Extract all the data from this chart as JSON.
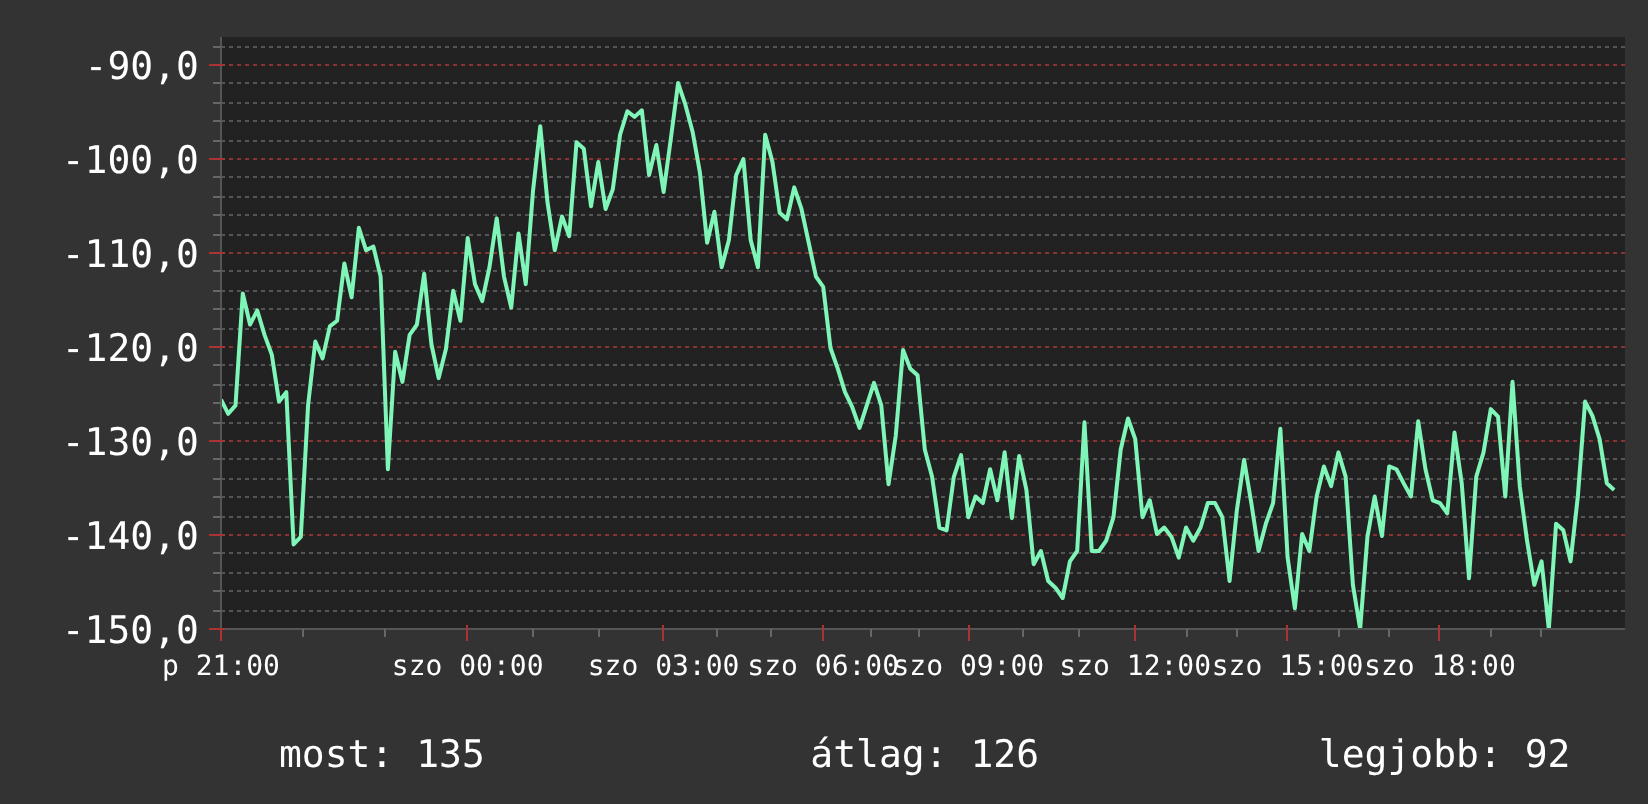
{
  "chart_data": {
    "type": "line",
    "color": "#7ff5b8",
    "grid": true,
    "marker": "none",
    "line_style": "solid",
    "ylim": [
      -150,
      -87
    ],
    "categories": [
      "p 21:00",
      null,
      null,
      null,
      null,
      null,
      null,
      null,
      null,
      null,
      null,
      null,
      null,
      null,
      null,
      null,
      null,
      null,
      null,
      null,
      null,
      null,
      null,
      null,
      null,
      null,
      null,
      null,
      null,
      null,
      null,
      null,
      null,
      null,
      "szo 00:00",
      null,
      null,
      null,
      null,
      null,
      null,
      null,
      null,
      null,
      null,
      null,
      null,
      null,
      null,
      null,
      null,
      null,
      null,
      null,
      null,
      null,
      null,
      null,
      null,
      null,
      null,
      "szo 03:00",
      null,
      null,
      null,
      null,
      null,
      null,
      null,
      null,
      null,
      null,
      null,
      null,
      null,
      null,
      null,
      null,
      null,
      null,
      null,
      null,
      null,
      "szo 06:00",
      null,
      null,
      null,
      null,
      null,
      null,
      null,
      null,
      null,
      null,
      null,
      null,
      null,
      null,
      null,
      null,
      null,
      null,
      null,
      "szo 09:00",
      null,
      null,
      null,
      null,
      null,
      null,
      null,
      null,
      null,
      null,
      null,
      null,
      null,
      null,
      null,
      null,
      null,
      null,
      null,
      null,
      null,
      null,
      "szo 12:00",
      null,
      null,
      null,
      null,
      null,
      null,
      null,
      null,
      null,
      null,
      null,
      null,
      null,
      null,
      null,
      null,
      null,
      null,
      null,
      null,
      "szo 15:00",
      null,
      null,
      null,
      null,
      null,
      null,
      null,
      null,
      null,
      null,
      null,
      null,
      null,
      null,
      null,
      null,
      null,
      null,
      null,
      null,
      "szo 18:00",
      null,
      null,
      null,
      null,
      null,
      null,
      null,
      null,
      null,
      null,
      null,
      null,
      null,
      null,
      null,
      null,
      null,
      null,
      null,
      null,
      null,
      null,
      null,
      null
    ],
    "yticks": [
      {
        "value": -150,
        "label": "-150,0"
      },
      {
        "value": -140,
        "label": "-140,0"
      },
      {
        "value": -130,
        "label": "-130,0"
      },
      {
        "value": -120,
        "label": "-120,0"
      },
      {
        "value": -110,
        "label": "-110,0"
      },
      {
        "value": -100,
        "label": "-100,0"
      },
      {
        "value": -90,
        "label": "-90,0"
      }
    ],
    "values": [
      -125.6,
      -127.1,
      -126.2,
      -114.3,
      -117.6,
      -116.1,
      -118.7,
      -120.8,
      -125.8,
      -124.8,
      -141.0,
      -140.2,
      -126.2,
      -119.4,
      -121.2,
      -117.8,
      -117.2,
      -111.1,
      -114.7,
      -107.3,
      -109.7,
      -109.3,
      -112.5,
      -133.0,
      -120.5,
      -123.7,
      -118.7,
      -117.6,
      -112.2,
      -119.7,
      -123.3,
      -120.2,
      -114.0,
      -117.2,
      -108.4,
      -113.3,
      -115.1,
      -111.5,
      -106.3,
      -112.5,
      -115.8,
      -107.9,
      -113.3,
      -103.4,
      -96.5,
      -104.6,
      -109.7,
      -106.1,
      -108.2,
      -98.2,
      -98.9,
      -105.0,
      -100.3,
      -105.3,
      -103.2,
      -97.4,
      -94.9,
      -95.5,
      -94.8,
      -101.7,
      -98.5,
      -103.5,
      -97.8,
      -91.9,
      -94.2,
      -97.1,
      -101.4,
      -108.9,
      -105.6,
      -111.5,
      -108.6,
      -101.7,
      -100.0,
      -108.6,
      -111.5,
      -97.4,
      -100.3,
      -105.7,
      -106.4,
      -103.0,
      -105.3,
      -108.9,
      -112.5,
      -113.6,
      -120.1,
      -122.3,
      -124.8,
      -126.4,
      -128.6,
      -126.2,
      -123.8,
      -126.2,
      -134.6,
      -129.4,
      -120.3,
      -122.3,
      -123.0,
      -130.9,
      -133.8,
      -139.2,
      -139.5,
      -133.8,
      -131.5,
      -138.1,
      -135.9,
      -136.6,
      -133.0,
      -136.3,
      -131.2,
      -138.2,
      -131.6,
      -135.2,
      -143.1,
      -141.7,
      -144.9,
      -145.6,
      -146.7,
      -142.8,
      -141.7,
      -128.0,
      -141.7,
      -141.7,
      -140.6,
      -138.1,
      -130.9,
      -127.6,
      -129.8,
      -138.1,
      -136.3,
      -139.9,
      -139.2,
      -140.2,
      -142.4,
      -139.2,
      -140.6,
      -139.2,
      -136.6,
      -136.6,
      -138.1,
      -144.9,
      -137.4,
      -132.0,
      -136.6,
      -141.7,
      -138.8,
      -136.6,
      -128.7,
      -142.4,
      -147.8,
      -139.9,
      -141.7,
      -135.9,
      -132.7,
      -134.8,
      -131.2,
      -133.8,
      -145.3,
      -150.0,
      -140.2,
      -135.9,
      -140.1,
      -132.7,
      -133.0,
      -134.5,
      -135.9,
      -127.9,
      -133.0,
      -136.3,
      -136.6,
      -137.7,
      -129.1,
      -134.5,
      -144.6,
      -133.8,
      -131.2,
      -126.6,
      -127.4,
      -135.9,
      -123.7,
      -134.8,
      -140.6,
      -145.3,
      -142.8,
      -150.0,
      -138.8,
      -139.5,
      -142.8,
      -135.9,
      -125.8,
      -127.3,
      -129.8,
      -134.5,
      -135.2
    ],
    "annotations": [
      "most: 135",
      "átlag: 126",
      "legjobb: 92"
    ]
  }
}
